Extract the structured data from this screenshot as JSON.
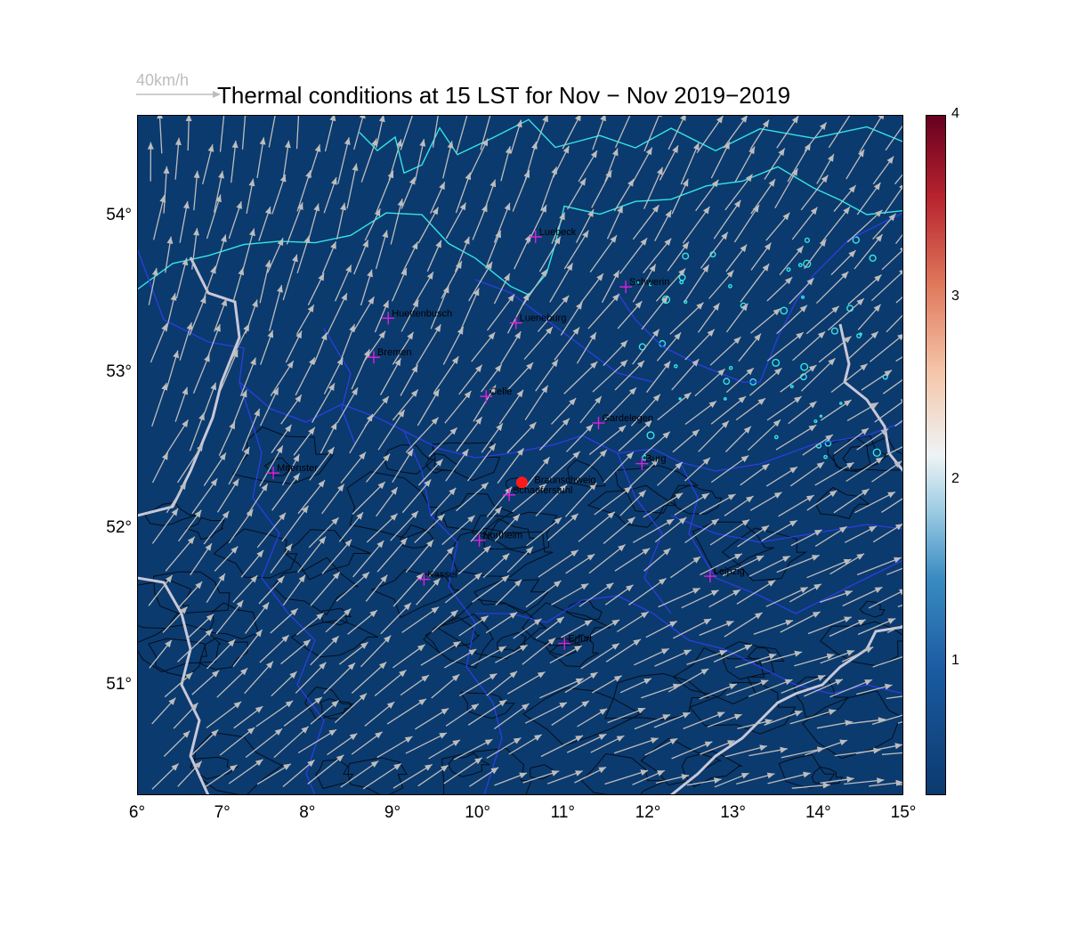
{
  "title": "Thermal conditions at 15 LST for Nov − Nov  2019−2019",
  "reference_arrow": {
    "label": "40km/h"
  },
  "map": {
    "lon_range": [
      6,
      15
    ],
    "lat_range": [
      50.3,
      54.65
    ],
    "lon_ticks": [
      "6°",
      "7°",
      "8°",
      "9°",
      "10°",
      "11°",
      "12°",
      "13°",
      "14°",
      "15°"
    ],
    "lat_ticks": [
      "51°",
      "52°",
      "53°",
      "54°"
    ],
    "background_color": "#0b3a6e",
    "wind_arrow_color": "#bdbdbd",
    "coast_color": "#33e6e6",
    "border_color": "#2a3fe0",
    "highlight_station": {
      "name": "Braunschweig",
      "lon": 10.52,
      "lat": 52.3,
      "color": "#ff1a1a"
    },
    "stations": [
      {
        "name": "Luebeck",
        "lon": 10.68,
        "lat": 53.87
      },
      {
        "name": "Schwerin",
        "lon": 11.74,
        "lat": 53.55
      },
      {
        "name": "Huettenbusch",
        "lon": 8.95,
        "lat": 53.35
      },
      {
        "name": "Lueneburg",
        "lon": 10.45,
        "lat": 53.32
      },
      {
        "name": "Bremen",
        "lon": 8.78,
        "lat": 53.1
      },
      {
        "name": "Celle",
        "lon": 10.1,
        "lat": 52.85
      },
      {
        "name": "Gardelegen",
        "lon": 11.42,
        "lat": 52.68
      },
      {
        "name": "Burg",
        "lon": 11.93,
        "lat": 52.42
      },
      {
        "name": "Muenster",
        "lon": 7.6,
        "lat": 52.36
      },
      {
        "name": "Schaeferstuhl",
        "lon": 10.37,
        "lat": 52.22
      },
      {
        "name": "Northeim",
        "lon": 10.02,
        "lat": 51.93
      },
      {
        "name": "Kassel",
        "lon": 9.37,
        "lat": 51.68
      },
      {
        "name": "Leipzig",
        "lon": 12.73,
        "lat": 51.7
      },
      {
        "name": "Erfurt",
        "lon": 11.02,
        "lat": 51.27
      }
    ]
  },
  "colorbar": {
    "ticks": [
      "1",
      "2",
      "3",
      "4"
    ],
    "tick_values": [
      1,
      2,
      3,
      4
    ],
    "range": [
      0.27,
      4.0
    ]
  }
}
